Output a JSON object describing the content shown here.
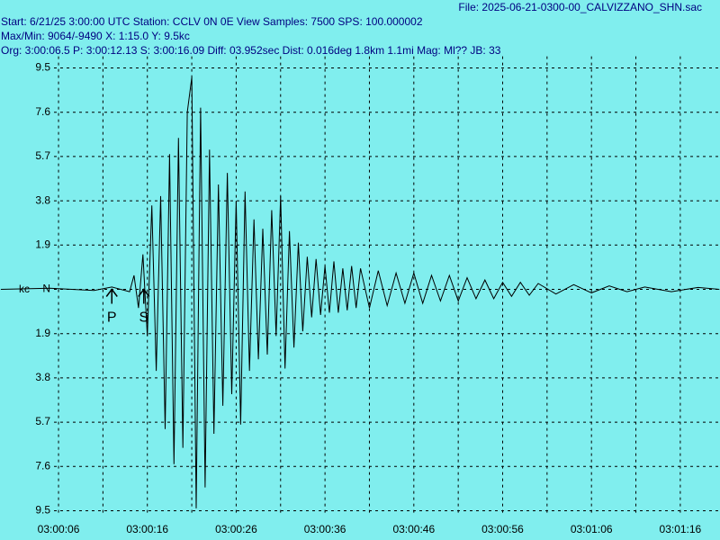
{
  "header": {
    "file": "File: 2025-06-21-0300-00_CALVIZZANO_SHN.sac",
    "line1": "Start: 6/21/25  3:00:00 UTC Station: CCLV 0N 0E View Samples: 7500  SPS: 100.000002",
    "line2": "Max/Min: 9064/-9490 X: 1:15.0 Y: 9.5kc",
    "line3": "Org: 3:00:06.5 P: 3:00:12.13 S: 3:00:16.09 Diff: 03.952sec Dist: 0.016deg 1.8km 1.1mi  Mag: Ml?? JB: 33"
  },
  "chart_data": {
    "type": "line",
    "ylabel": "kc",
    "color": "#000000",
    "background": "#80eeee",
    "grid": true,
    "xlim": [
      -0.59,
      80.47
    ],
    "ylim": [
      -10,
      10
    ],
    "xticks": [
      {
        "value": 6,
        "label": "03:00:06"
      },
      {
        "value": 16,
        "label": "03:00:16"
      },
      {
        "value": 26,
        "label": "03:00:26"
      },
      {
        "value": 36,
        "label": "03:00:36"
      },
      {
        "value": 46,
        "label": "03:00:46"
      },
      {
        "value": 56,
        "label": "03:00:56"
      },
      {
        "value": 66,
        "label": "03:01:06"
      },
      {
        "value": 76,
        "label": "03:01:16"
      }
    ],
    "yticks": [
      9.5,
      7.6,
      5.7,
      3.8,
      1.9,
      {
        "value": 0,
        "label": "N"
      },
      {
        "value": -1.9,
        "label": "1.9"
      },
      {
        "value": -3.8,
        "label": "3.8"
      },
      {
        "value": -5.7,
        "label": "5.7"
      },
      {
        "value": -7.6,
        "label": "7.6"
      },
      {
        "value": -9.5,
        "label": "9.5"
      }
    ],
    "annotations": [
      {
        "label": "P",
        "x": 12.0
      },
      {
        "label": "S",
        "x": 15.6
      }
    ],
    "x": [
      -0.5,
      5,
      10,
      12,
      14,
      14.5,
      15,
      15.5,
      16,
      16.5,
      17,
      17.5,
      18,
      18.5,
      19,
      19.5,
      20,
      20.5,
      21,
      21.5,
      22,
      22.5,
      23,
      23.5,
      24,
      24.5,
      25,
      25.5,
      26,
      26.5,
      27,
      27.5,
      28,
      28.5,
      29,
      29.5,
      30,
      30.5,
      31,
      31.5,
      32,
      32.5,
      33,
      33.5,
      34,
      34.5,
      35,
      35.5,
      36,
      36.5,
      37,
      37.5,
      38,
      38.5,
      39,
      39.5,
      40,
      41,
      42,
      43,
      44,
      45,
      46,
      47,
      48,
      49,
      50,
      51,
      52,
      53,
      54,
      55,
      56,
      57,
      58,
      59,
      60,
      62,
      64,
      66,
      68,
      70,
      72,
      75,
      78,
      80.4
    ],
    "values": [
      0,
      0.05,
      -0.05,
      0.1,
      -0.1,
      0.6,
      -0.8,
      1.5,
      -2.0,
      3.6,
      -3.5,
      4.0,
      -6.0,
      5.8,
      -7.5,
      6.5,
      -6.8,
      7.6,
      9.1,
      -9.4,
      7.8,
      -8.5,
      6.0,
      -6.2,
      4.5,
      -5.0,
      5.0,
      -4.5,
      3.8,
      -5.8,
      4.2,
      -3.5,
      3.0,
      -3.0,
      2.6,
      -2.8,
      3.4,
      -2.0,
      4.0,
      -3.4,
      2.5,
      -2.5,
      2.0,
      -1.8,
      1.4,
      -1.2,
      1.3,
      -1.1,
      1.0,
      -1.0,
      1.2,
      -1.0,
      0.9,
      -0.9,
      1.0,
      -0.8,
      0.9,
      -0.8,
      0.8,
      -0.7,
      0.7,
      -0.6,
      0.7,
      -0.6,
      0.6,
      -0.5,
      0.6,
      -0.5,
      0.5,
      -0.4,
      0.4,
      -0.4,
      0.3,
      -0.3,
      0.3,
      -0.25,
      0.25,
      -0.2,
      0.2,
      -0.15,
      0.15,
      -0.1,
      0.1,
      -0.1,
      0.08,
      0
    ]
  }
}
